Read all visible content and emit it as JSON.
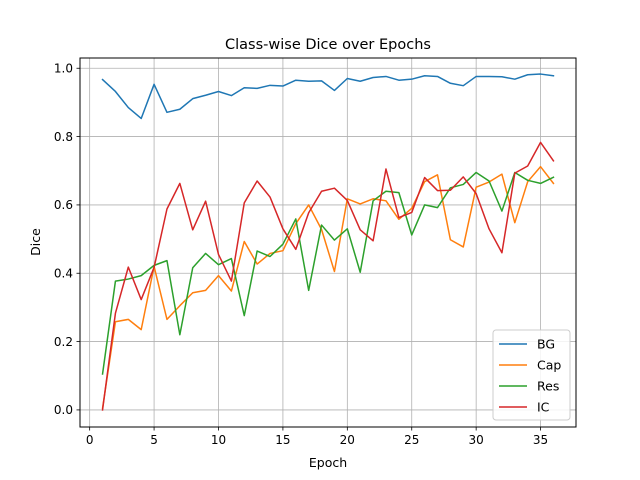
{
  "chart_data": {
    "type": "line",
    "title": "Class-wise Dice over Epochs",
    "xlabel": "Epoch",
    "ylabel": "Dice",
    "xlim": [
      -0.75,
      37.75
    ],
    "ylim": [
      -0.05,
      1.03
    ],
    "xticks": [
      0,
      5,
      10,
      15,
      20,
      25,
      30,
      35
    ],
    "yticks": [
      0.0,
      0.2,
      0.4,
      0.6,
      0.8,
      1.0
    ],
    "ytick_labels": [
      "0.0",
      "0.2",
      "0.4",
      "0.6",
      "0.8",
      "1.0"
    ],
    "grid": true,
    "legend_position": "lower-right",
    "x": [
      1,
      2,
      3,
      4,
      5,
      6,
      7,
      8,
      9,
      10,
      11,
      12,
      13,
      14,
      15,
      16,
      17,
      18,
      19,
      20,
      21,
      22,
      23,
      24,
      25,
      26,
      27,
      28,
      29,
      30,
      31,
      32,
      33,
      34,
      35,
      36
    ],
    "series": [
      {
        "name": "BG",
        "color": "#1f77b4",
        "values": [
          0.967,
          0.932,
          0.885,
          0.853,
          0.953,
          0.871,
          0.88,
          0.911,
          0.921,
          0.932,
          0.92,
          0.943,
          0.941,
          0.95,
          0.948,
          0.965,
          0.962,
          0.963,
          0.935,
          0.97,
          0.962,
          0.973,
          0.976,
          0.965,
          0.968,
          0.978,
          0.976,
          0.956,
          0.949,
          0.976,
          0.976,
          0.975,
          0.968,
          0.981,
          0.983,
          0.978
        ]
      },
      {
        "name": "Cap",
        "color": "#ff7f0e",
        "values": [
          0.005,
          0.258,
          0.265,
          0.235,
          0.42,
          0.265,
          0.305,
          0.343,
          0.35,
          0.393,
          0.348,
          0.493,
          0.427,
          0.458,
          0.466,
          0.545,
          0.6,
          0.528,
          0.405,
          0.618,
          0.603,
          0.618,
          0.612,
          0.558,
          0.59,
          0.668,
          0.688,
          0.498,
          0.477,
          0.652,
          0.667,
          0.69,
          0.548,
          0.668,
          0.712,
          0.663
        ]
      },
      {
        "name": "Res",
        "color": "#2ca02c",
        "values": [
          0.105,
          0.377,
          0.383,
          0.393,
          0.423,
          0.437,
          0.22,
          0.416,
          0.458,
          0.425,
          0.443,
          0.276,
          0.465,
          0.449,
          0.485,
          0.559,
          0.35,
          0.541,
          0.497,
          0.53,
          0.403,
          0.612,
          0.64,
          0.636,
          0.512,
          0.6,
          0.592,
          0.65,
          0.66,
          0.695,
          0.67,
          0.582,
          0.695,
          0.672,
          0.663,
          0.681
        ]
      },
      {
        "name": "IC",
        "color": "#d62728",
        "values": [
          0.0,
          0.283,
          0.418,
          0.323,
          0.417,
          0.588,
          0.663,
          0.527,
          0.611,
          0.455,
          0.377,
          0.606,
          0.67,
          0.623,
          0.53,
          0.47,
          0.577,
          0.64,
          0.649,
          0.613,
          0.527,
          0.495,
          0.705,
          0.563,
          0.578,
          0.68,
          0.642,
          0.643,
          0.682,
          0.633,
          0.53,
          0.46,
          0.693,
          0.714,
          0.783,
          0.729
        ]
      }
    ]
  }
}
